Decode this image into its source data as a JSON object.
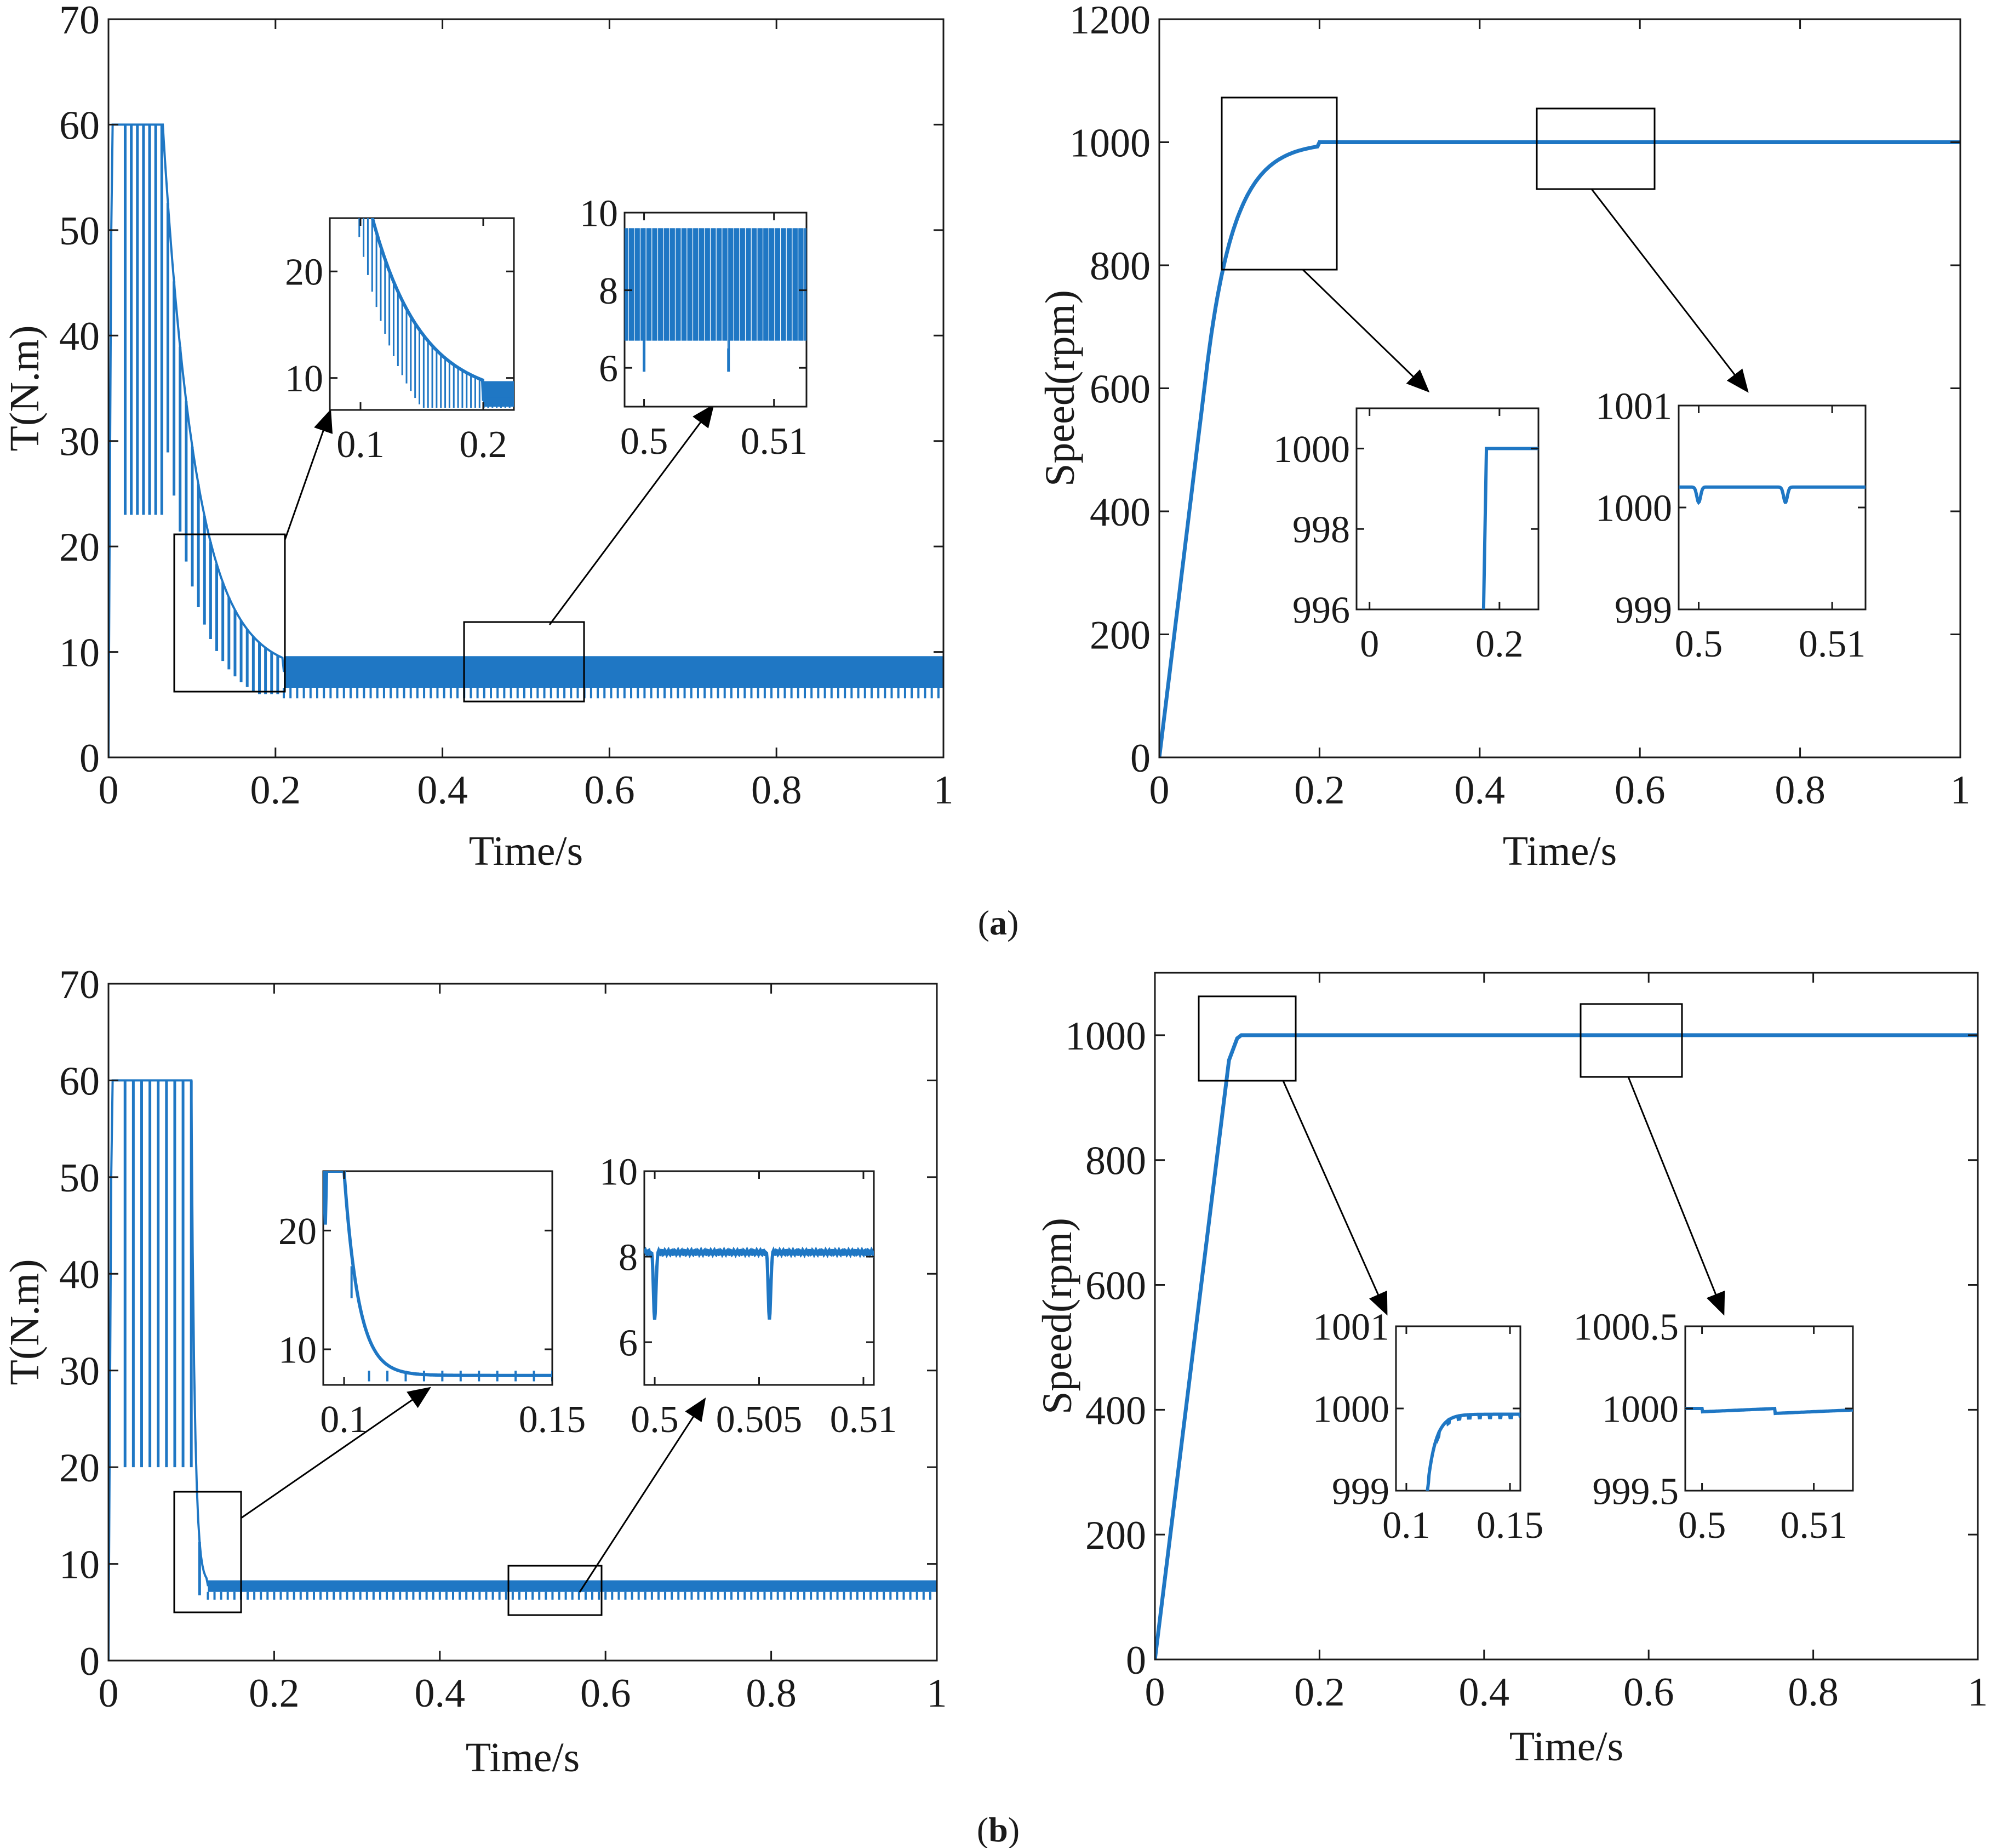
{
  "figure": {
    "panel_labels": [
      {
        "pre": "(",
        "letter": "a",
        "post": ")"
      },
      {
        "pre": "(",
        "letter": "b",
        "post": ")"
      }
    ]
  },
  "colors": {
    "line": "#1f77c4",
    "axis": "#1a1a1a",
    "box": "#000000"
  },
  "chart_data": [
    {
      "id": "a-torque",
      "type": "line",
      "title": "",
      "xlabel": "Time/s",
      "ylabel": "T(N.m)",
      "xlim": [
        0,
        1
      ],
      "ylim": [
        0,
        70
      ],
      "xticks": [
        "0",
        "0.2",
        "0.4",
        "0.6",
        "0.8",
        "1"
      ],
      "yticks": [
        "0",
        "10",
        "20",
        "30",
        "40",
        "50",
        "60",
        "70"
      ],
      "series": [
        {
          "name": "Torque",
          "description": "starts at 60 with dips to ~23, decays exponentially to ~8 by t=0.21, then ripples between ~6 and ~9.7",
          "x": [
            0,
            0.02,
            0.07,
            0.1,
            0.13,
            0.16,
            0.19,
            0.21,
            1.0
          ],
          "y": [
            60,
            60,
            60,
            39,
            24,
            15,
            10,
            8,
            8
          ]
        }
      ],
      "zoom_boxes": [
        {
          "label": "zoom-1",
          "x": [
            0.07,
            0.21
          ],
          "y": [
            6,
            21
          ]
        },
        {
          "label": "zoom-2",
          "x": [
            0.43,
            0.57
          ],
          "y": [
            5,
            13
          ]
        }
      ],
      "insets": [
        {
          "id": "a-torque-inset-1",
          "xlim": [
            0.075,
            0.225
          ],
          "ylim": [
            7,
            25
          ],
          "xticks": [
            "0.1",
            "0.2"
          ],
          "yticks": [
            "10",
            "20"
          ],
          "description": "dense dips on exponential decay reaching ~8 at t=0.2"
        },
        {
          "id": "a-torque-inset-2",
          "xlim": [
            0.4985,
            0.5125
          ],
          "ylim": [
            5,
            10
          ],
          "xticks": [
            "0.5",
            "0.51"
          ],
          "yticks": [
            "6",
            "8",
            "10"
          ],
          "description": "dense ripple between ~6.6 and ~9.6 with dips near 6"
        }
      ]
    },
    {
      "id": "a-speed",
      "type": "line",
      "title": "",
      "xlabel": "Time/s",
      "ylabel": "Speed(rpm)",
      "xlim": [
        0,
        1
      ],
      "ylim": [
        0,
        1200
      ],
      "xticks": [
        "0",
        "0.2",
        "0.4",
        "0.6",
        "0.8",
        "1"
      ],
      "yticks": [
        "0",
        "200",
        "400",
        "600",
        "800",
        "1000",
        "1200"
      ],
      "series": [
        {
          "name": "Speed",
          "x": [
            0,
            0.04,
            0.08,
            0.12,
            0.16,
            0.2,
            1.0
          ],
          "y": [
            0,
            460,
            800,
            950,
            995,
            1000,
            1000
          ]
        }
      ],
      "zoom_boxes": [
        {
          "label": "zoom-1",
          "x": [
            0.08,
            0.22
          ],
          "y": [
            795,
            1075
          ]
        },
        {
          "label": "zoom-2",
          "x": [
            0.47,
            0.61
          ],
          "y": [
            930,
            1060
          ]
        }
      ],
      "insets": [
        {
          "id": "a-speed-inset-1",
          "xlim": [
            -0.02,
            0.26
          ],
          "ylim": [
            996,
            1001
          ],
          "xticks": [
            "0",
            "0.2"
          ],
          "yticks": [
            "996",
            "998",
            "1000"
          ],
          "description": "steep rise reaching 1000 at t~0.18 then flat"
        },
        {
          "id": "a-speed-inset-2",
          "xlim": [
            0.4985,
            0.5125
          ],
          "ylim": [
            999,
            1001
          ],
          "xticks": [
            "0.5",
            "0.51"
          ],
          "yticks": [
            "999",
            "1000",
            "1001"
          ],
          "description": "flat at ~1000.2 with two small dips"
        }
      ]
    },
    {
      "id": "b-torque",
      "type": "line",
      "title": "",
      "xlabel": "Time/s",
      "ylabel": "T(N.m)",
      "xlim": [
        0,
        1
      ],
      "ylim": [
        0,
        70
      ],
      "xticks": [
        "0",
        "0.2",
        "0.4",
        "0.6",
        "0.8",
        "1"
      ],
      "yticks": [
        "0",
        "10",
        "20",
        "30",
        "40",
        "50",
        "60",
        "70"
      ],
      "series": [
        {
          "name": "Torque",
          "description": "60 with dips to ~20 until t=0.1, fast drop to ~8, then small ripple",
          "x": [
            0,
            0.1,
            0.11,
            0.12,
            1.0
          ],
          "y": [
            60,
            60,
            20,
            8,
            8
          ]
        }
      ],
      "zoom_boxes": [
        {
          "label": "zoom-1",
          "x": [
            0.07,
            0.15
          ],
          "y": [
            5,
            17
          ]
        },
        {
          "label": "zoom-2",
          "x": [
            0.48,
            0.59
          ],
          "y": [
            4.5,
            10
          ]
        }
      ],
      "insets": [
        {
          "id": "b-torque-inset-1",
          "xlim": [
            0.095,
            0.15
          ],
          "ylim": [
            7,
            25
          ],
          "xticks": [
            "0.1",
            "0.15"
          ],
          "yticks": [
            "10",
            "20"
          ],
          "description": "decay from 25 to ~8 by t=0.115 with small periodic dips"
        },
        {
          "id": "b-torque-inset-2",
          "xlim": [
            0.4995,
            0.5105
          ],
          "ylim": [
            5,
            10
          ],
          "xticks": [
            "0.5",
            "0.505",
            "0.51"
          ],
          "yticks": [
            "6",
            "8",
            "10"
          ],
          "description": "flat ~8 with two dips to ~6.5"
        }
      ]
    },
    {
      "id": "b-speed",
      "type": "line",
      "title": "",
      "xlabel": "Time/s",
      "ylabel": "Speed(rpm)",
      "xlim": [
        0,
        1
      ],
      "ylim": [
        0,
        1100
      ],
      "xticks": [
        "0",
        "0.2",
        "0.4",
        "0.6",
        "0.8",
        "1"
      ],
      "yticks": [
        "0",
        "200",
        "400",
        "600",
        "800",
        "1000"
      ],
      "series": [
        {
          "name": "Speed",
          "x": [
            0,
            0.09,
            0.1,
            0.105,
            1.0
          ],
          "y": [
            0,
            960,
            995,
            1000,
            1000
          ]
        }
      ],
      "zoom_boxes": [
        {
          "label": "zoom-1",
          "x": [
            0.05,
            0.17
          ],
          "y": [
            920,
            1050
          ]
        },
        {
          "label": "zoom-2",
          "x": [
            0.52,
            0.645
          ],
          "y": [
            930,
            1040
          ]
        }
      ],
      "insets": [
        {
          "id": "b-speed-inset-1",
          "xlim": [
            0.095,
            0.155
          ],
          "ylim": [
            999,
            1001
          ],
          "xticks": [
            "0.1",
            "0.15"
          ],
          "yticks": [
            "999",
            "1000",
            "1001"
          ],
          "description": "rise from 999 to ~1000 by t~0.125 then ripple"
        },
        {
          "id": "b-speed-inset-2",
          "xlim": [
            0.4985,
            0.5135
          ],
          "ylim": [
            999.5,
            1000.5
          ],
          "xticks": [
            "0.5",
            "0.51"
          ],
          "yticks": [
            "999.5",
            "1000",
            "1000.5"
          ],
          "description": "flat ~1000 with two small dips"
        }
      ]
    }
  ]
}
